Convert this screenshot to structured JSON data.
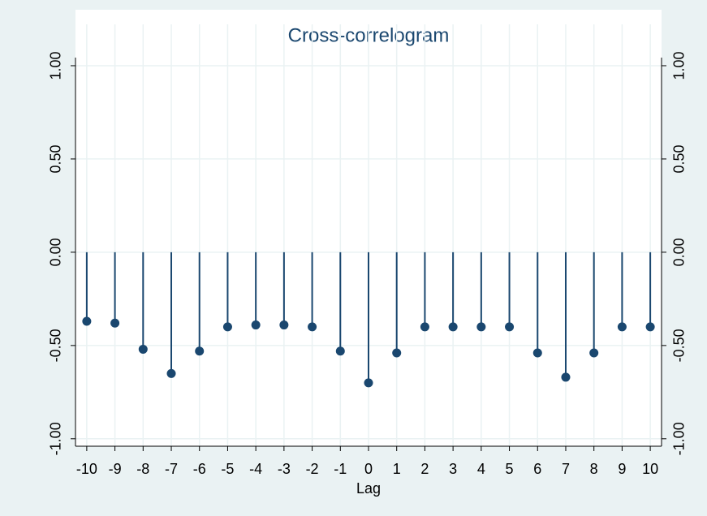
{
  "chart_data": {
    "type": "stem",
    "title": "Cross-correlogram",
    "x_label": "Lag",
    "x": [
      -10,
      -9,
      -8,
      -7,
      -6,
      -5,
      -4,
      -3,
      -2,
      -1,
      0,
      1,
      2,
      3,
      4,
      5,
      6,
      7,
      8,
      9,
      10
    ],
    "values": [
      -0.37,
      -0.38,
      -0.52,
      -0.65,
      -0.53,
      -0.4,
      -0.39,
      -0.39,
      -0.4,
      -0.53,
      -0.7,
      -0.54,
      -0.4,
      -0.4,
      -0.4,
      -0.4,
      -0.54,
      -0.67,
      -0.54,
      -0.4,
      -0.4
    ],
    "color": "#1a476f",
    "xlim": [
      -10.4,
      10.4
    ],
    "xticks": [
      -10,
      -9,
      -8,
      -7,
      -6,
      -5,
      -4,
      -3,
      -2,
      -1,
      0,
      1,
      2,
      3,
      4,
      5,
      6,
      7,
      8,
      9,
      10
    ],
    "ylim": [
      -1.04,
      1.3
    ],
    "yticks": [
      {
        "value": -1,
        "label": "-1.00"
      },
      {
        "value": -0.5,
        "label": "-0.50"
      },
      {
        "value": 0,
        "label": "0.00"
      },
      {
        "value": 0.5,
        "label": "0.50"
      },
      {
        "value": 1,
        "label": "1.00"
      }
    ],
    "grid": true
  }
}
